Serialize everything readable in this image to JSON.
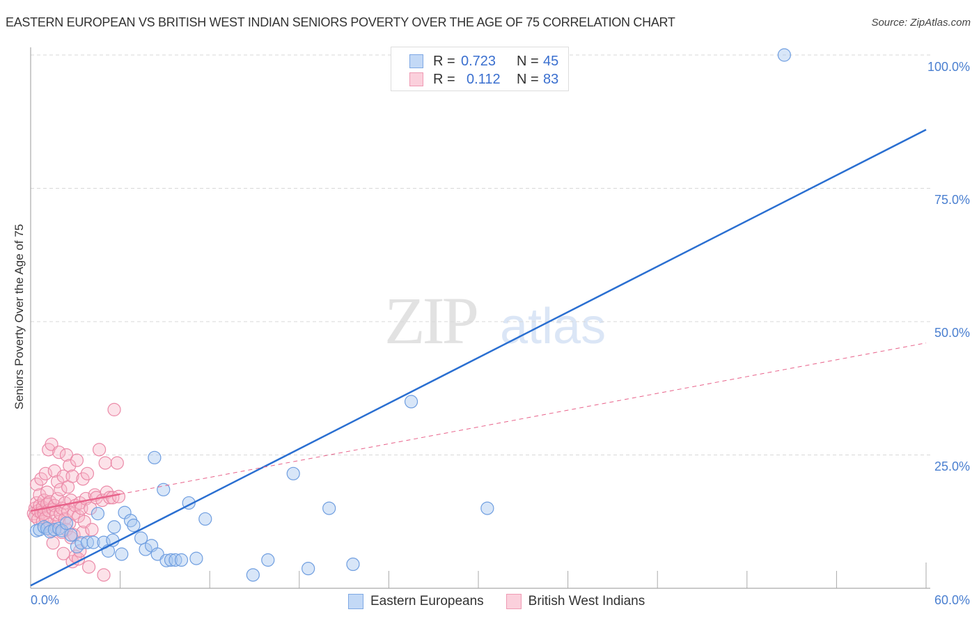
{
  "header": {
    "title": "EASTERN EUROPEAN VS BRITISH WEST INDIAN SENIORS POVERTY OVER THE AGE OF 75 CORRELATION CHART",
    "source": "Source: ZipAtlas.com"
  },
  "watermark": {
    "zip": "ZIP",
    "atlas": "atlas"
  },
  "legend_box": {
    "rows": [
      {
        "r_label": "R =",
        "r_value": "0.723",
        "n_label": "N =",
        "n_value": "45",
        "color": "#a8c8f0"
      },
      {
        "r_label": "R =",
        "r_value": "0.112",
        "n_label": "N =",
        "n_value": "83",
        "color": "#f7b6c8"
      }
    ]
  },
  "axes": {
    "ylabel": "Seniors Poverty Over the Age of 75",
    "yticks": [
      "100.0%",
      "75.0%",
      "50.0%",
      "25.0%"
    ],
    "xtick_left": "0.0%",
    "xtick_right": "60.0%"
  },
  "bottom_legend": {
    "items": [
      {
        "label": "Eastern Europeans",
        "color": "#a8c8f0"
      },
      {
        "label": "British West Indians",
        "color": "#f7b6c8"
      }
    ]
  },
  "colors": {
    "blue_line": "#2a6fd1",
    "pink_line": "#e8628a",
    "blue_fill": "rgba(168,200,240,0.45)",
    "blue_stroke": "#6f9ee0",
    "pink_fill": "rgba(247,182,200,0.40)",
    "pink_stroke": "#eb8aa8"
  },
  "chart_data": {
    "type": "scatter",
    "title": "EASTERN EUROPEAN VS BRITISH WEST INDIAN SENIORS POVERTY OVER THE AGE OF 75 CORRELATION CHART",
    "xlabel": "",
    "ylabel": "Seniors Poverty Over the Age of 75",
    "xlim": [
      0,
      60
    ],
    "ylim": [
      0,
      100
    ],
    "grid": "horizontal dashed at 25/50/75/100",
    "legend_position": "bottom center + top stats box",
    "series": [
      {
        "name": "Eastern Europeans",
        "R": 0.723,
        "N": 45,
        "trend": {
          "x0": 0,
          "y0": 0.5,
          "x1": 60,
          "y1": 86
        },
        "points": [
          [
            0.4,
            10.8
          ],
          [
            0.6,
            11.0
          ],
          [
            0.9,
            11.5
          ],
          [
            1.1,
            11.2
          ],
          [
            1.3,
            10.6
          ],
          [
            1.6,
            11.0
          ],
          [
            1.9,
            11.2
          ],
          [
            2.1,
            10.8
          ],
          [
            2.4,
            12.2
          ],
          [
            2.7,
            10.0
          ],
          [
            3.1,
            7.8
          ],
          [
            3.4,
            8.5
          ],
          [
            3.8,
            8.6
          ],
          [
            4.2,
            8.6
          ],
          [
            4.5,
            14.0
          ],
          [
            4.9,
            8.6
          ],
          [
            5.2,
            7.0
          ],
          [
            5.5,
            9.0
          ],
          [
            5.6,
            11.5
          ],
          [
            6.1,
            6.4
          ],
          [
            6.3,
            14.2
          ],
          [
            6.7,
            12.7
          ],
          [
            6.9,
            11.8
          ],
          [
            7.4,
            9.4
          ],
          [
            7.7,
            7.3
          ],
          [
            8.1,
            8.0
          ],
          [
            8.5,
            6.4
          ],
          [
            8.3,
            24.5
          ],
          [
            8.9,
            18.5
          ],
          [
            9.1,
            5.2
          ],
          [
            9.4,
            5.3
          ],
          [
            9.7,
            5.3
          ],
          [
            10.1,
            5.3
          ],
          [
            10.6,
            16.0
          ],
          [
            11.1,
            5.6
          ],
          [
            11.7,
            13.0
          ],
          [
            14.9,
            2.5
          ],
          [
            15.9,
            5.3
          ],
          [
            17.6,
            21.5
          ],
          [
            18.6,
            3.7
          ],
          [
            20.0,
            15.0
          ],
          [
            21.6,
            4.5
          ],
          [
            25.5,
            35.0
          ],
          [
            30.6,
            15.0
          ],
          [
            50.5,
            100.0
          ]
        ]
      },
      {
        "name": "British West Indians",
        "R": 0.112,
        "N": 83,
        "trend": {
          "x0": 0,
          "y0": 14.5,
          "x1": 60,
          "y1": 46,
          "solid_until_x": 6
        },
        "points": [
          [
            0.2,
            14.0
          ],
          [
            0.3,
            15.0
          ],
          [
            0.3,
            13.5
          ],
          [
            0.4,
            16.0
          ],
          [
            0.4,
            19.5
          ],
          [
            0.5,
            14.5
          ],
          [
            0.5,
            13.0
          ],
          [
            0.6,
            15.5
          ],
          [
            0.6,
            17.5
          ],
          [
            0.7,
            14.2
          ],
          [
            0.7,
            20.5
          ],
          [
            0.8,
            12.5
          ],
          [
            0.8,
            15.2
          ],
          [
            0.9,
            16.5
          ],
          [
            0.9,
            14.0
          ],
          [
            1.0,
            13.2
          ],
          [
            1.0,
            21.5
          ],
          [
            1.1,
            15.8
          ],
          [
            1.1,
            18.0
          ],
          [
            1.2,
            26.0
          ],
          [
            1.2,
            14.6
          ],
          [
            1.3,
            12.0
          ],
          [
            1.3,
            16.2
          ],
          [
            1.4,
            27.0
          ],
          [
            1.4,
            10.8
          ],
          [
            1.5,
            14.8
          ],
          [
            1.5,
            8.5
          ],
          [
            1.6,
            22.0
          ],
          [
            1.6,
            15.5
          ],
          [
            1.7,
            13.8
          ],
          [
            1.7,
            11.5
          ],
          [
            1.8,
            16.8
          ],
          [
            1.8,
            20.0
          ],
          [
            1.9,
            25.5
          ],
          [
            1.9,
            12.5
          ],
          [
            2.0,
            14.0
          ],
          [
            2.0,
            18.5
          ],
          [
            2.1,
            10.5
          ],
          [
            2.1,
            15.0
          ],
          [
            2.2,
            21.0
          ],
          [
            2.2,
            6.5
          ],
          [
            2.3,
            13.0
          ],
          [
            2.3,
            16.0
          ],
          [
            2.4,
            25.0
          ],
          [
            2.4,
            11.0
          ],
          [
            2.5,
            19.0
          ],
          [
            2.5,
            14.5
          ],
          [
            2.6,
            23.0
          ],
          [
            2.6,
            12.2
          ],
          [
            2.7,
            16.5
          ],
          [
            2.7,
            9.5
          ],
          [
            2.8,
            21.0
          ],
          [
            2.8,
            5.0
          ],
          [
            2.9,
            14.0
          ],
          [
            2.9,
            10.0
          ],
          [
            3.0,
            15.5
          ],
          [
            3.0,
            6.0
          ],
          [
            3.1,
            24.0
          ],
          [
            3.2,
            5.5
          ],
          [
            3.2,
            13.5
          ],
          [
            3.3,
            16.0
          ],
          [
            3.3,
            7.0
          ],
          [
            3.4,
            15.0
          ],
          [
            3.5,
            20.5
          ],
          [
            3.5,
            10.5
          ],
          [
            3.6,
            12.5
          ],
          [
            3.7,
            16.8
          ],
          [
            3.8,
            21.5
          ],
          [
            3.9,
            4.0
          ],
          [
            4.0,
            15.0
          ],
          [
            4.1,
            11.0
          ],
          [
            4.3,
            17.5
          ],
          [
            4.4,
            17.0
          ],
          [
            4.6,
            26.0
          ],
          [
            4.8,
            16.5
          ],
          [
            4.9,
            2.5
          ],
          [
            5.1,
            18.0
          ],
          [
            5.3,
            17.0
          ],
          [
            5.0,
            23.5
          ],
          [
            5.5,
            17.0
          ],
          [
            5.6,
            33.5
          ],
          [
            5.8,
            23.5
          ],
          [
            5.9,
            17.2
          ]
        ]
      }
    ]
  }
}
